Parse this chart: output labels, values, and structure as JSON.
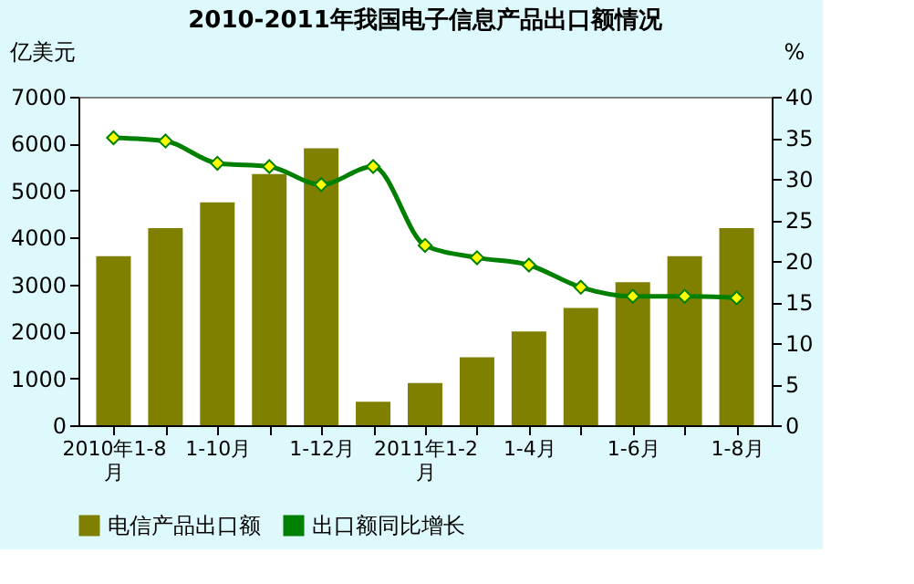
{
  "chart_data": {
    "type": "bar",
    "title": "2010-2011年我国电子信息产品出口额情况",
    "ylabel": "亿美元",
    "y2label": "%",
    "categories": [
      "2010年1-8月",
      null,
      "1-10月",
      null,
      "1-12月",
      null,
      "2011年1-2月",
      null,
      "1-4月",
      null,
      "1-6月",
      null,
      "1-8月"
    ],
    "series": [
      {
        "name": "电信产品出口额",
        "color": "#808000",
        "values": [
          3600,
          4200,
          4750,
          5350,
          5900,
          500,
          900,
          1450,
          2000,
          2500,
          3050,
          3600,
          4200
        ]
      },
      {
        "name": "出口额同比增长",
        "type": "line",
        "axis": "y2",
        "color": "#008000",
        "marker": "diamond",
        "values": [
          35.0,
          34.6,
          31.9,
          31.5,
          29.3,
          31.5,
          21.9,
          20.4,
          19.5,
          16.8,
          15.7,
          15.7,
          15.5
        ]
      }
    ],
    "ylim": [
      0,
      7000
    ],
    "yticks": [
      0,
      1000,
      2000,
      3000,
      4000,
      5000,
      6000,
      7000
    ],
    "y2lim": [
      0,
      40
    ],
    "y2ticks": [
      0,
      5,
      10,
      15,
      20,
      25,
      30,
      35,
      40
    ],
    "grid": false,
    "legend": "bottom"
  }
}
